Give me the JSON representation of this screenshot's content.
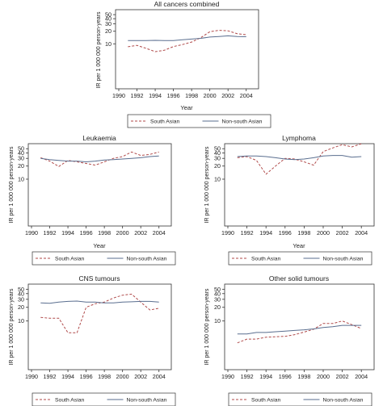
{
  "figure": {
    "panels": [
      {
        "id": "all",
        "y_label": "IR per 1 000 000 person-years",
        "x_label": "Year"
      },
      {
        "id": "leuk",
        "y_label": "IR per 1 000 000 person-years",
        "x_label": "Year"
      },
      {
        "id": "lymph",
        "y_label": "IR per 1 000 000 person-years",
        "x_label": "Year"
      },
      {
        "id": "cns",
        "y_label": "IR per 1 000 000 person-years",
        "x_label": ""
      },
      {
        "id": "solid",
        "y_label": "IR per 1 000 000 person-years",
        "x_label": ""
      }
    ]
  },
  "chart_data": [
    {
      "type": "line",
      "title": "All cancers combined",
      "xlabel": "Year",
      "ylabel": "IR per 1 000 000 person-years",
      "y_scale": "log",
      "xlim": [
        1990,
        2005
      ],
      "ylim": [
        1,
        55
      ],
      "x_ticks": [
        1990,
        1992,
        1994,
        1996,
        1998,
        2000,
        2002,
        2004
      ],
      "y_ticks": [
        10,
        20,
        30,
        40,
        50
      ],
      "grid": false,
      "legend": "bottom",
      "x": [
        1991,
        1992,
        1993,
        1994,
        1995,
        1996,
        1997,
        1998,
        1999,
        2000,
        2001,
        2002,
        2003,
        2004
      ],
      "series": [
        {
          "name": "South Asian",
          "style": "dashed",
          "color": "#b04a4a",
          "values": [
            8.5,
            9.2,
            7.8,
            6.5,
            7.0,
            8.6,
            9.6,
            11.0,
            14.0,
            19.5,
            21.0,
            20.5,
            17.5,
            16.5
          ]
        },
        {
          "name": "Non-south Asian",
          "style": "solid",
          "color": "#5a6e8f",
          "values": [
            12.0,
            12.0,
            12.0,
            12.1,
            12.0,
            12.0,
            12.5,
            13.0,
            13.5,
            14.5,
            15.0,
            15.5,
            15.0,
            14.8
          ]
        }
      ]
    },
    {
      "type": "line",
      "title": "Leukaemia",
      "xlabel": "Year",
      "ylabel": "IR per 1 000 000 person-years",
      "y_scale": "log",
      "xlim": [
        1990,
        2005
      ],
      "ylim": [
        1,
        55
      ],
      "x_ticks": [
        1990,
        1992,
        1994,
        1996,
        1998,
        2000,
        2002,
        2004
      ],
      "y_ticks": [
        10,
        20,
        30,
        40,
        50
      ],
      "grid": false,
      "legend": "bottom",
      "x": [
        1991,
        1992,
        1993,
        1994,
        1995,
        1996,
        1997,
        1998,
        1999,
        2000,
        2001,
        2002,
        2003,
        2004
      ],
      "series": [
        {
          "name": "South Asian",
          "style": "dashed",
          "color": "#b04a4a",
          "values": [
            31,
            26,
            19.5,
            27,
            25,
            23,
            21,
            25,
            30,
            33,
            42,
            35,
            37,
            42
          ]
        },
        {
          "name": "Non-south Asian",
          "style": "solid",
          "color": "#5a6e8f",
          "values": [
            30,
            28,
            27,
            26,
            26,
            25,
            26,
            27.5,
            28,
            29,
            30,
            31,
            33,
            34
          ]
        }
      ]
    },
    {
      "type": "line",
      "title": "Lymphoma",
      "xlabel": "Year",
      "ylabel": "IR per 1 000 000 person-years",
      "y_scale": "log",
      "xlim": [
        1990,
        2005
      ],
      "ylim": [
        1,
        55
      ],
      "x_ticks": [
        1990,
        1992,
        1994,
        1996,
        1998,
        2000,
        2002,
        2004
      ],
      "y_ticks": [
        10,
        20,
        30,
        40,
        50
      ],
      "grid": false,
      "legend": "bottom",
      "x": [
        1991,
        1992,
        1993,
        1994,
        1995,
        1996,
        1997,
        1998,
        1999,
        2000,
        2001,
        2002,
        2003,
        2004
      ],
      "series": [
        {
          "name": "South Asian",
          "style": "dashed",
          "color": "#b04a4a",
          "values": [
            31,
            33,
            27,
            13,
            20,
            30,
            29,
            25,
            21,
            43,
            52,
            62,
            55,
            65
          ]
        },
        {
          "name": "Non-south Asian",
          "style": "solid",
          "color": "#5a6e8f",
          "values": [
            33,
            34,
            34,
            33,
            31,
            29,
            28,
            29,
            31,
            34,
            35,
            35,
            32,
            33
          ]
        }
      ]
    },
    {
      "type": "line",
      "title": "CNS tumours",
      "xlabel": "",
      "ylabel": "IR per 1 000 000 person-years",
      "y_scale": "log",
      "xlim": [
        1990,
        2005
      ],
      "ylim": [
        1,
        55
      ],
      "x_ticks": [
        1990,
        1992,
        1994,
        1996,
        1998,
        2000,
        2002,
        2004
      ],
      "y_ticks": [
        10,
        20,
        30,
        40,
        50
      ],
      "grid": false,
      "legend": "bottom",
      "x": [
        1991,
        1992,
        1993,
        1994,
        1995,
        1996,
        1997,
        1998,
        1999,
        2000,
        2001,
        2002,
        2003,
        2004
      ],
      "series": [
        {
          "name": "South Asian",
          "style": "dashed",
          "color": "#b04a4a",
          "values": [
            12,
            11.5,
            11.5,
            5.5,
            5.5,
            20,
            24,
            26,
            32,
            37,
            39,
            26,
            17.5,
            19
          ]
        },
        {
          "name": "Non-south Asian",
          "style": "solid",
          "color": "#5a6e8f",
          "values": [
            25,
            24.5,
            26,
            27,
            27.5,
            26,
            26,
            25,
            25,
            26,
            26.5,
            27,
            27,
            26
          ]
        }
      ]
    },
    {
      "type": "line",
      "title": "Other solid tumours",
      "xlabel": "",
      "ylabel": "IR per 1 000 000 person-years",
      "y_scale": "log",
      "xlim": [
        1990,
        2005
      ],
      "ylim": [
        1,
        55
      ],
      "x_ticks": [
        1990,
        1992,
        1994,
        1996,
        1998,
        2000,
        2002,
        2004
      ],
      "y_ticks": [
        10,
        20,
        30,
        40,
        50
      ],
      "grid": false,
      "legend": "bottom",
      "x": [
        1991,
        1992,
        1993,
        1994,
        1995,
        1996,
        1997,
        1998,
        1999,
        2000,
        2001,
        2002,
        2003,
        2004
      ],
      "series": [
        {
          "name": "South Asian",
          "style": "dashed",
          "color": "#b04a4a",
          "values": [
            3.3,
            4.0,
            4.0,
            4.4,
            4.5,
            4.6,
            5.0,
            5.7,
            6.6,
            8.8,
            8.8,
            10.0,
            8.3,
            6.8
          ]
        },
        {
          "name": "Non-south Asian",
          "style": "solid",
          "color": "#5a6e8f",
          "values": [
            5.2,
            5.2,
            5.6,
            5.6,
            5.8,
            6.0,
            6.2,
            6.4,
            6.7,
            7.2,
            7.5,
            8.0,
            8.0,
            8.0
          ]
        }
      ]
    }
  ]
}
